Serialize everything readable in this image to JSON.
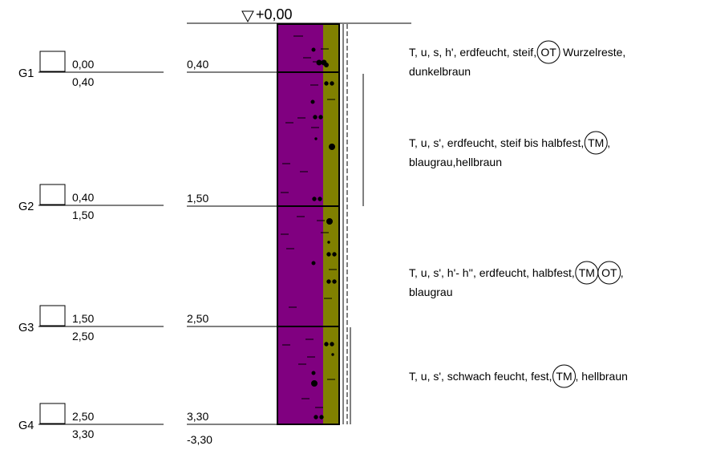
{
  "datum": "+0,00",
  "bottom_level": "-3,30",
  "colors": {
    "clay_fill": "#800080",
    "silt_fill": "#808000",
    "line": "#000000"
  },
  "samples": [
    {
      "id": "G1",
      "top": "0,00",
      "bottom": "0,40"
    },
    {
      "id": "G2",
      "top": "0,40",
      "bottom": "1,50"
    },
    {
      "id": "G3",
      "top": "1,50",
      "bottom": "2,50"
    },
    {
      "id": "G4",
      "top": "2,50",
      "bottom": "3,30"
    }
  ],
  "layers": [
    {
      "depth": "0,40",
      "description": {
        "line1": "T, u, s, h', erdfeucht, steif,",
        "codes": [
          "OT"
        ],
        "after": " Wurzelreste,",
        "line2": "dunkelbraun"
      }
    },
    {
      "depth": "1,50",
      "description": {
        "line1": "T, u, s', erdfeucht, steif bis halbfest,",
        "codes": [
          "TM"
        ],
        "after": ",",
        "line2": "blaugrau,hellbraun"
      }
    },
    {
      "depth": "2,50",
      "description": {
        "line1": "T, u, s', h'- h'', erdfeucht, halbfest,",
        "codes": [
          "TM",
          "OT"
        ],
        "after": ",",
        "line2": "blaugrau"
      }
    },
    {
      "depth": "3,30",
      "description": {
        "line1": "T, u, s', schwach feucht, fest,",
        "codes": [
          "TM"
        ],
        "after": ", hellbraun",
        "line2": ""
      }
    }
  ]
}
